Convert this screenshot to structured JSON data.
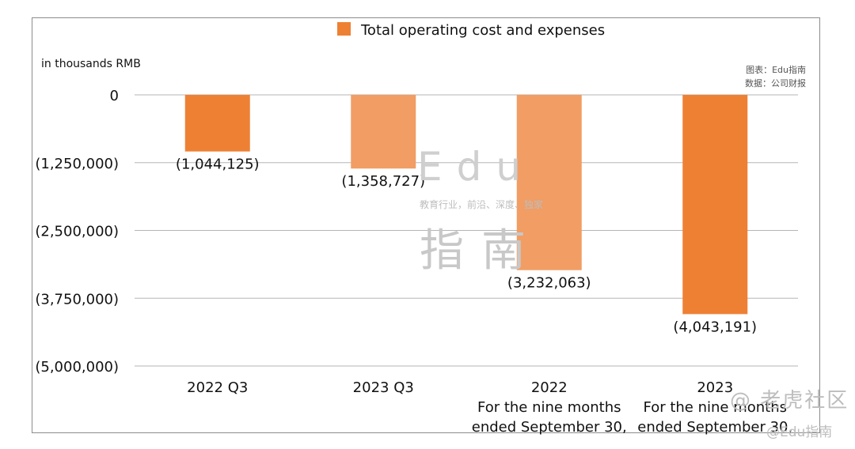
{
  "chart_data": {
    "type": "bar",
    "title": "",
    "legend": [
      "Total operating cost and expenses"
    ],
    "ylabel": "in thousands RMB",
    "ylim": [
      -5000000,
      0
    ],
    "yticks": [
      0,
      -1250000,
      -2500000,
      -3750000,
      -5000000
    ],
    "ytick_labels": [
      "0",
      "(1,250,000)",
      "(2,500,000)",
      "(3,750,000)",
      "(5,000,000)"
    ],
    "grid": true,
    "categories": [
      [
        "2022 Q3"
      ],
      [
        "2023 Q3"
      ],
      [
        "2022",
        "For the nine months",
        "ended September 30,"
      ],
      [
        "2023",
        "For the nine months",
        "ended September 30,"
      ]
    ],
    "values": [
      -1044125,
      -1358727,
      -3232063,
      -4043191
    ],
    "data_labels": [
      "(1,044,125)",
      "(1,358,727)",
      "(3,232,063)",
      "(4,043,191)"
    ],
    "colors": [
      "#ee8034",
      "#f19d64",
      "#f19d64",
      "#ee8034"
    ],
    "legend_color": "#ee8034"
  },
  "source_note": [
    "图表：Edu指南",
    "数据：公司财报"
  ],
  "watermark": {
    "brand": "Edu",
    "tagline": "教育行业，前沿、深度、独家",
    "brand_zh": "指南",
    "corner_top": "@ 老虎社区",
    "corner_bottom": "@Edu指南"
  }
}
